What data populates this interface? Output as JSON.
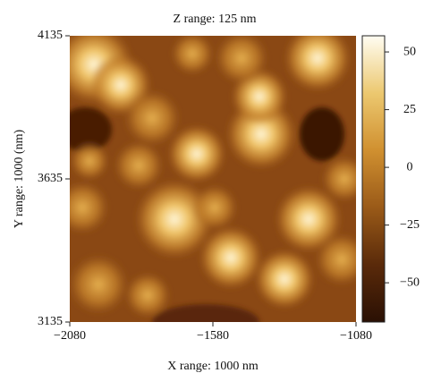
{
  "chart_data": {
    "type": "heatmap",
    "title": "Z range: 125 nm",
    "x_label": "X range: 1000 nm",
    "y_label": "Y range: 1000 (nm)",
    "xlim": [
      -2080,
      -1080
    ],
    "xticks": [
      {
        "value": -2080,
        "label": "−2080"
      },
      {
        "value": -1580,
        "label": "−1580"
      },
      {
        "value": -1080,
        "label": "−1080"
      }
    ],
    "ylim": [
      3135,
      4135
    ],
    "yticks": [
      3135,
      3635,
      4135
    ],
    "clim": [
      -67,
      57
    ],
    "cticks": [
      50,
      25,
      0,
      {
        "value": -25,
        "label": "−25"
      },
      {
        "value": -50,
        "label": "−50"
      }
    ],
    "colormap": [
      "#2a1004",
      "#5a2a0a",
      "#9a5a18",
      "#d09030",
      "#ecc870",
      "#fffdf2"
    ]
  }
}
